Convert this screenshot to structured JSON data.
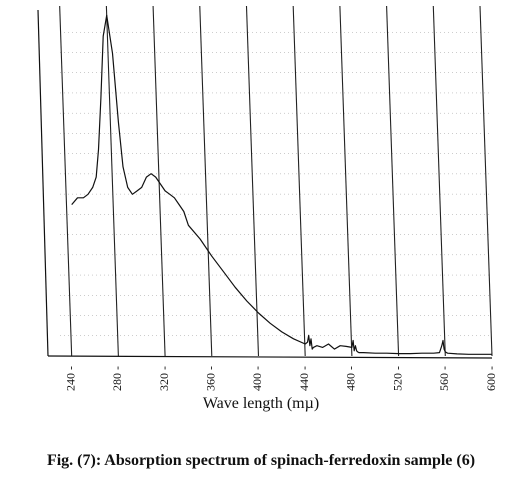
{
  "chart_data": {
    "type": "line",
    "title": "",
    "xlabel": "Wave length (mµ)",
    "ylabel": "",
    "caption": "Fig. (7): Absorption spectrum of spinach-ferredoxin sample (6)",
    "x_ticks": [
      240,
      280,
      320,
      360,
      400,
      440,
      480,
      520,
      560,
      600
    ],
    "xlim": [
      230,
      600
    ],
    "ylim": [
      0,
      1
    ],
    "grid": true,
    "series": [
      {
        "x": [
          240,
          245,
          250,
          254,
          258,
          261,
          263,
          265,
          267,
          270,
          275,
          280,
          284,
          288,
          292,
          296,
          300,
          304,
          308,
          312,
          316,
          320,
          324,
          328,
          332,
          336,
          340,
          350,
          360,
          370,
          380,
          390,
          400,
          410,
          420,
          430,
          440,
          442,
          443,
          444,
          445,
          446,
          447,
          450,
          455,
          460,
          465,
          470,
          475,
          480,
          481,
          482,
          483,
          484,
          485,
          486,
          490,
          500,
          510,
          520,
          530,
          540,
          550,
          555,
          557,
          558,
          559,
          560,
          562,
          570,
          580,
          590,
          600
        ],
        "y": [
          0.44,
          0.46,
          0.46,
          0.47,
          0.49,
          0.52,
          0.6,
          0.75,
          0.93,
          0.99,
          0.88,
          0.68,
          0.55,
          0.49,
          0.47,
          0.48,
          0.49,
          0.52,
          0.53,
          0.52,
          0.5,
          0.48,
          0.47,
          0.46,
          0.44,
          0.42,
          0.38,
          0.34,
          0.29,
          0.245,
          0.2,
          0.16,
          0.125,
          0.095,
          0.07,
          0.05,
          0.035,
          0.04,
          0.06,
          0.03,
          0.05,
          0.02,
          0.025,
          0.03,
          0.025,
          0.035,
          0.02,
          0.03,
          0.028,
          0.025,
          0.045,
          0.015,
          0.03,
          0.015,
          0.012,
          0.01,
          0.01,
          0.008,
          0.008,
          0.007,
          0.007,
          0.008,
          0.008,
          0.01,
          0.03,
          0.045,
          0.02,
          0.012,
          0.008,
          0.006,
          0.005,
          0.005,
          0.005
        ]
      }
    ]
  }
}
